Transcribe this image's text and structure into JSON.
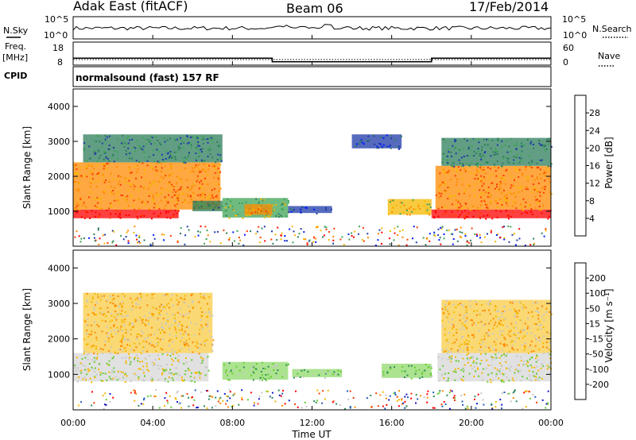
{
  "header": {
    "station": "Adak East (fitACF)",
    "beam": "Beam 06",
    "date": "17/Feb/2014"
  },
  "top_panel": {
    "left_label": "N.Sky",
    "right_label": "N.Search",
    "left_ticks": [
      "10^5",
      "10^0"
    ],
    "right_ticks": [
      "10^5",
      "10^0"
    ]
  },
  "freq_panel": {
    "left_label_1": "Freq.",
    "left_label_2": "[MHz]",
    "right_label": "Nave",
    "left_ticks": [
      "18",
      "8"
    ],
    "right_ticks": [
      "60",
      "0"
    ]
  },
  "cpid": {
    "label": "CPID",
    "value": "normalsound (fast) 157 RF"
  },
  "x_axis": {
    "label": "Time UT",
    "ticks": [
      "00:00",
      "04:00",
      "08:00",
      "12:00",
      "16:00",
      "20:00",
      "00:00"
    ]
  },
  "panels": {
    "power": {
      "ylabel": "Slant Range [km]",
      "yticks": [
        "1000",
        "2000",
        "3000",
        "4000"
      ],
      "colorbar_label": "Power [dB]",
      "colorbar_ticks": [
        "4",
        "8",
        "12",
        "16",
        "20",
        "24",
        "28"
      ],
      "colors": [
        "#0018ff",
        "#1e3aa8",
        "#2e7d5b",
        "#3fa356",
        "#f5b800",
        "#ff8a00",
        "#ff3c00",
        "#ff0000"
      ]
    },
    "velocity": {
      "ylabel": "Slant Range [km]",
      "yticks": [
        "1000",
        "2000",
        "3000",
        "4000"
      ],
      "colorbar_label": "Velocity [m s⁻¹]",
      "colorbar_ticks": [
        "200",
        "100",
        "50",
        "15",
        "-15",
        "-50",
        "-100",
        "-200"
      ],
      "colors": [
        "#1616c8",
        "#1f5fb8",
        "#2e8b57",
        "#66cc33",
        "#c8c8c8",
        "#f5b800",
        "#ff8a00",
        "#ff3c00",
        "#ff0000"
      ]
    }
  },
  "chart_data": {
    "type": "heatmap",
    "x_unit": "hours UT",
    "x_range": [
      0,
      24
    ],
    "y_unit": "km",
    "y_range": [
      0,
      4500
    ],
    "frequency_steps": [
      {
        "start_hour": 0,
        "end_hour": 10,
        "freq_mhz": 10.5
      },
      {
        "start_hour": 10,
        "end_hour": 18,
        "freq_mhz": 8.5
      },
      {
        "start_hour": 18,
        "end_hour": 24,
        "freq_mhz": 10.5
      }
    ],
    "power_regions": [
      {
        "t0": 0.0,
        "t1": 5.3,
        "r0": 800,
        "r1": 1050,
        "level": 7
      },
      {
        "t0": 0.0,
        "t1": 7.4,
        "r0": 1050,
        "r1": 2400,
        "level": 5
      },
      {
        "t0": 0.5,
        "t1": 7.5,
        "r0": 2400,
        "r1": 3200,
        "level": 2
      },
      {
        "t0": 6.0,
        "t1": 7.5,
        "r0": 1000,
        "r1": 1300,
        "level": 2
      },
      {
        "t0": 7.5,
        "t1": 10.8,
        "r0": 820,
        "r1": 1380,
        "level": 3
      },
      {
        "t0": 8.6,
        "t1": 10.0,
        "r0": 900,
        "r1": 1200,
        "level": 5
      },
      {
        "t0": 10.8,
        "t1": 13.0,
        "r0": 950,
        "r1": 1150,
        "level": 1
      },
      {
        "t0": 14.0,
        "t1": 16.5,
        "r0": 2800,
        "r1": 3200,
        "level": 1
      },
      {
        "t0": 15.8,
        "t1": 18.0,
        "r0": 900,
        "r1": 1350,
        "level": 4
      },
      {
        "t0": 18.0,
        "t1": 24.0,
        "r0": 800,
        "r1": 1050,
        "level": 7
      },
      {
        "t0": 18.2,
        "t1": 24.0,
        "r0": 1050,
        "r1": 2300,
        "level": 5
      },
      {
        "t0": 18.5,
        "t1": 24.0,
        "r0": 2300,
        "r1": 3100,
        "level": 2
      }
    ],
    "velocity_regions": [
      {
        "t0": 0.0,
        "t1": 6.8,
        "r0": 800,
        "r1": 1600,
        "level": 4
      },
      {
        "t0": 0.5,
        "t1": 7.0,
        "r0": 1600,
        "r1": 3300,
        "level": 5
      },
      {
        "t0": 7.5,
        "t1": 10.8,
        "r0": 850,
        "r1": 1350,
        "level": 3
      },
      {
        "t0": 11.0,
        "t1": 13.5,
        "r0": 920,
        "r1": 1150,
        "level": 3
      },
      {
        "t0": 15.5,
        "t1": 18.0,
        "r0": 900,
        "r1": 1300,
        "level": 3
      },
      {
        "t0": 18.3,
        "t1": 24.0,
        "r0": 800,
        "r1": 1600,
        "level": 4
      },
      {
        "t0": 18.5,
        "t1": 24.0,
        "r0": 1600,
        "r1": 3100,
        "level": 5
      }
    ]
  }
}
